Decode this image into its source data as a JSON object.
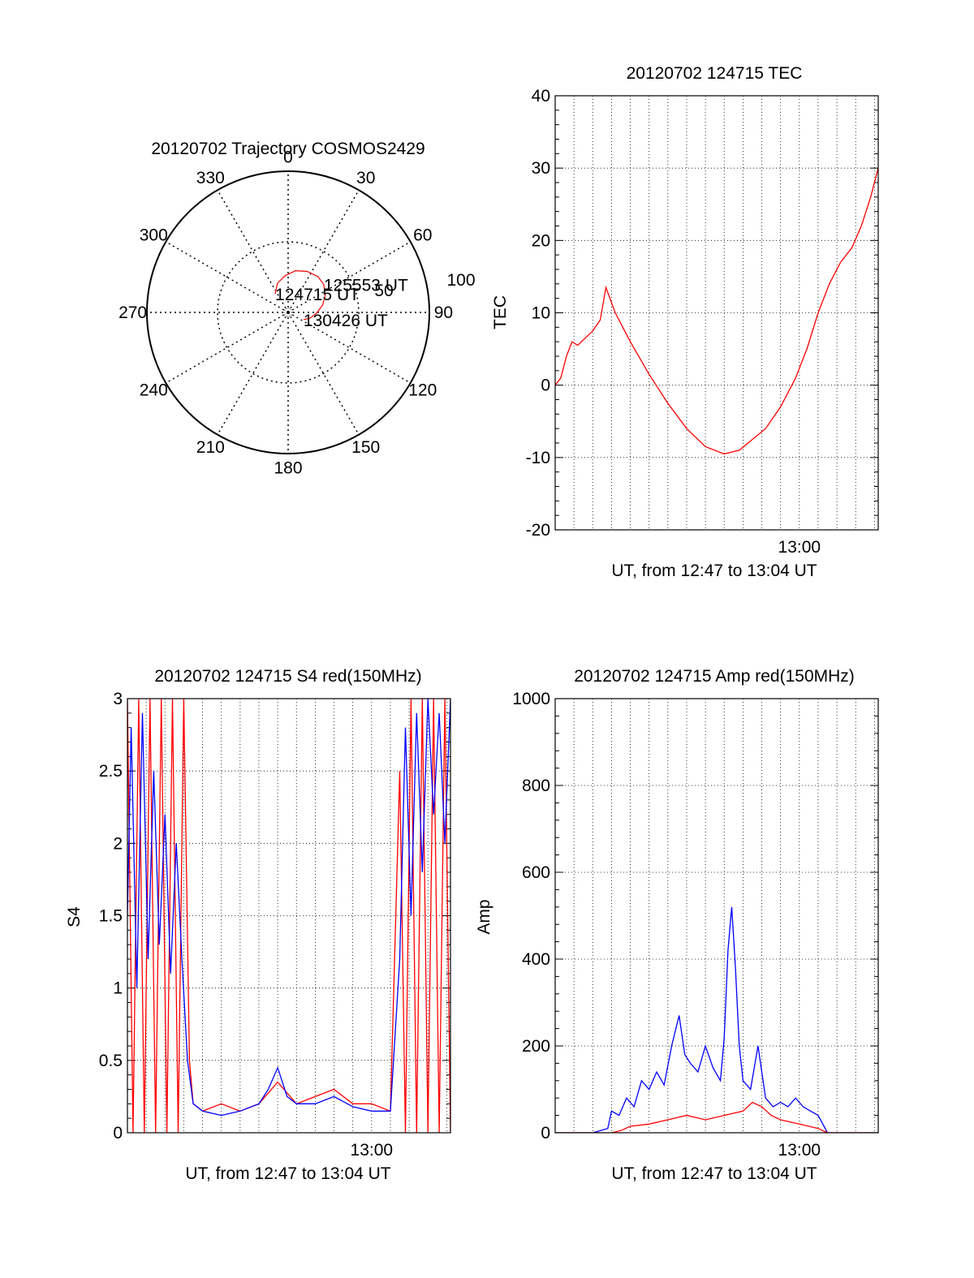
{
  "chart_data": [
    {
      "id": "trajectory",
      "type": "polar",
      "title": "20120702 Trajectory COSMOS2429",
      "azimuth_labels": [
        "0",
        "30",
        "60",
        "90",
        "120",
        "150",
        "180",
        "210",
        "240",
        "270",
        "300",
        "330"
      ],
      "elevation_labels": [
        "50",
        "100"
      ],
      "grid": true,
      "line_color": "#ff0000",
      "track": [
        {
          "az": 325,
          "el": 16
        },
        {
          "az": 340,
          "el": 22
        },
        {
          "az": 355,
          "el": 26
        },
        {
          "az": 10,
          "el": 30
        },
        {
          "az": 25,
          "el": 32
        },
        {
          "az": 40,
          "el": 33
        },
        {
          "az": 52,
          "el": 32
        },
        {
          "az": 65,
          "el": 29
        },
        {
          "az": 78,
          "el": 25
        },
        {
          "az": 92,
          "el": 20
        },
        {
          "az": 105,
          "el": 16
        },
        {
          "az": 115,
          "el": 12
        }
      ],
      "annotations": [
        {
          "text": "124715 UT",
          "az": 325,
          "el": 16
        },
        {
          "text": "125553 UT",
          "az": 52,
          "el": 32
        },
        {
          "text": "130426 UT",
          "az": 115,
          "el": 12
        }
      ]
    },
    {
      "id": "tec",
      "type": "line",
      "title": "20120702 124715 TEC",
      "xlabel": "UT, from 12:47 to 13:04 UT",
      "ylabel": "TEC",
      "xlim": [
        0,
        17.2
      ],
      "ylim": [
        -20,
        40
      ],
      "yticks": [
        "-20",
        "-10",
        "0",
        "10",
        "20",
        "30",
        "40"
      ],
      "xtick_labels": [
        {
          "x": 13,
          "label": "13:00"
        }
      ],
      "grid": true,
      "series": [
        {
          "color": "#ff0000",
          "x": [
            0,
            0.3,
            0.6,
            0.9,
            1.2,
            1.6,
            2.0,
            2.4,
            2.7,
            3.2,
            4.0,
            5.0,
            6.0,
            7.0,
            8.0,
            9.0,
            9.8,
            10.5,
            11.2,
            12.0,
            12.8,
            13.4,
            14.0,
            14.6,
            15.2,
            15.8,
            16.3,
            16.8,
            17.2
          ],
          "y": [
            0,
            1,
            4,
            6,
            5.5,
            6.5,
            7.5,
            9,
            13.5,
            10,
            6,
            1.5,
            -2.5,
            -6,
            -8.5,
            -9.5,
            -9,
            -7.5,
            -6,
            -3,
            1,
            5,
            10,
            14,
            17,
            19,
            22,
            26,
            30
          ]
        }
      ]
    },
    {
      "id": "s4",
      "type": "line",
      "title": "20120702 124715 S4 red(150MHz)",
      "xlabel": "UT, from 12:47 to 13:04 UT",
      "ylabel": "S4",
      "xlim": [
        0,
        17.2
      ],
      "ylim": [
        0,
        3
      ],
      "yticks": [
        "0",
        "0.5",
        "1",
        "1.5",
        "2",
        "2.5",
        "3"
      ],
      "xtick_labels": [
        {
          "x": 13,
          "label": "13:00"
        }
      ],
      "grid": true,
      "series": [
        {
          "color": "#ff0000",
          "x": [
            0,
            0.3,
            0.6,
            0.9,
            1.2,
            1.5,
            1.8,
            2.1,
            2.4,
            2.7,
            3.0,
            3.3,
            3.5,
            4.0,
            5.0,
            6.0,
            7.0,
            8.0,
            9.0,
            10.0,
            11.0,
            12.0,
            13.0,
            14.0,
            14.5,
            14.8,
            15.1,
            15.4,
            15.7,
            16.0,
            16.3,
            16.6,
            16.9,
            17.2
          ],
          "y": [
            3,
            0,
            3,
            0,
            3,
            0,
            3,
            0,
            3,
            0,
            3,
            0.5,
            0.2,
            0.15,
            0.2,
            0.15,
            0.2,
            0.35,
            0.2,
            0.25,
            0.3,
            0.2,
            0.2,
            0.15,
            2.5,
            0,
            3,
            0,
            3,
            0,
            3,
            0,
            3,
            0
          ]
        },
        {
          "color": "#0000ff",
          "x": [
            0,
            0.2,
            0.5,
            0.8,
            1.1,
            1.4,
            1.7,
            2.0,
            2.3,
            2.6,
            2.9,
            3.2,
            3.5,
            4.0,
            5.0,
            6.0,
            7.0,
            7.5,
            8.0,
            8.5,
            9.0,
            10.0,
            11.0,
            12.0,
            13.0,
            14.0,
            14.5,
            14.8,
            15.1,
            15.4,
            15.7,
            16.0,
            16.3,
            16.6,
            16.9,
            17.2
          ],
          "y": [
            1.5,
            2.8,
            1.0,
            2.9,
            1.2,
            2.5,
            1.3,
            2.2,
            1.1,
            2.0,
            1.2,
            0.5,
            0.2,
            0.15,
            0.12,
            0.15,
            0.2,
            0.3,
            0.45,
            0.25,
            0.2,
            0.2,
            0.25,
            0.18,
            0.15,
            0.15,
            1.2,
            2.8,
            1.5,
            2.9,
            1.8,
            3.0,
            2.2,
            2.9,
            2.0,
            3.0
          ]
        }
      ]
    },
    {
      "id": "amp",
      "type": "line",
      "title": "20120702 124715 Amp red(150MHz)",
      "xlabel": "UT, from 12:47 to 13:04 UT",
      "ylabel": "Amp",
      "xlim": [
        0,
        17.2
      ],
      "ylim": [
        0,
        1000
      ],
      "yticks": [
        "0",
        "200",
        "400",
        "600",
        "800",
        "1000"
      ],
      "xtick_labels": [
        {
          "x": 13,
          "label": "13:00"
        }
      ],
      "grid": true,
      "series": [
        {
          "color": "#0000ff",
          "x": [
            0,
            2.0,
            2.8,
            3.0,
            3.4,
            3.8,
            4.2,
            4.6,
            5.0,
            5.4,
            5.8,
            6.2,
            6.6,
            6.9,
            7.2,
            7.6,
            8.0,
            8.4,
            8.8,
            9.0,
            9.2,
            9.4,
            9.6,
            9.8,
            10.0,
            10.4,
            10.8,
            11.2,
            11.6,
            12.0,
            12.4,
            12.8,
            13.2,
            13.6,
            14.0,
            14.5,
            17.2
          ],
          "y": [
            0,
            0,
            10,
            50,
            40,
            80,
            60,
            120,
            100,
            140,
            110,
            200,
            270,
            180,
            160,
            140,
            200,
            150,
            120,
            220,
            420,
            520,
            380,
            200,
            120,
            100,
            200,
            80,
            60,
            70,
            60,
            80,
            60,
            50,
            40,
            0,
            0
          ]
        },
        {
          "color": "#ff0000",
          "x": [
            0,
            3.0,
            3.5,
            4.0,
            5.0,
            6.0,
            7.0,
            8.0,
            9.0,
            10.0,
            10.5,
            11.0,
            11.5,
            12.0,
            13.0,
            14.0,
            14.5,
            17.2
          ],
          "y": [
            0,
            0,
            5,
            15,
            20,
            30,
            40,
            30,
            40,
            50,
            70,
            60,
            40,
            30,
            20,
            10,
            0,
            0
          ]
        }
      ]
    }
  ]
}
